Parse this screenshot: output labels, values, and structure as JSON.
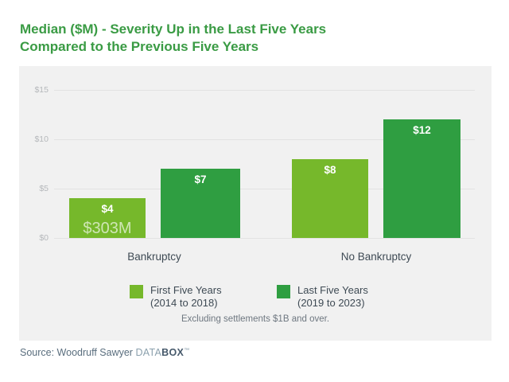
{
  "title": {
    "line1": "Median ($M) - Severity Up in the Last Five Years",
    "line2": "Compared to the Previous Five Years"
  },
  "colors": {
    "title_green": "#3a9b44",
    "first_series_green": "#76b82b",
    "last_series_green": "#2f9e41",
    "panel_background": "#f1f1f1",
    "gridline": "#e2e2e2",
    "axis_label_gray": "#b5b8bb",
    "text_slate": "#3e4a54"
  },
  "chart_data": {
    "type": "bar",
    "title": "Median ($M) - Severity Up in the Last Five Years Compared to the Previous Five Years",
    "categories": [
      "Bankruptcy",
      "No Bankruptcy"
    ],
    "series": [
      {
        "name": "First Five Years (2014 to 2018)",
        "values": [
          4,
          8
        ],
        "color": "#76b82b"
      },
      {
        "name": "Last Five Years (2019 to 2023)",
        "values": [
          7,
          12
        ],
        "color": "#2f9e41"
      }
    ],
    "bar_labels": {
      "bankruptcy_first": "$4",
      "bankruptcy_last": "$7",
      "no_bankruptcy_first": "$8",
      "no_bankruptcy_last": "$12"
    },
    "extra_bar_label": "$303M",
    "xlabel": "",
    "ylabel": "",
    "ylim": [
      0,
      15
    ],
    "yticks": [
      "$0",
      "$5",
      "$10",
      "$15"
    ],
    "grid": true,
    "legend_position": "bottom",
    "note": "Excluding settlements $1B and over."
  },
  "yaxis": {
    "tick15": "$15",
    "tick10": "$10",
    "tick5": "$5",
    "tick0": "$0"
  },
  "bars": {
    "bankruptcy_first_label": "$4",
    "bankruptcy_first_sublabel": "$303M",
    "bankruptcy_last_label": "$7",
    "no_bankruptcy_first_label": "$8",
    "no_bankruptcy_last_label": "$12"
  },
  "categories": {
    "cat1": "Bankruptcy",
    "cat2": "No Bankruptcy"
  },
  "legend": {
    "first_line1": "First Five Years",
    "first_line2": "(2014 to 2018)",
    "last_line1": "Last Five Years",
    "last_line2": "(2019 to 2023)"
  },
  "note": "Excluding settlements $1B and over.",
  "source": {
    "prefix": "Source: Woodruff Sawyer ",
    "brand_light": "DATA",
    "brand_bold": "BOX",
    "trademark": "™"
  }
}
